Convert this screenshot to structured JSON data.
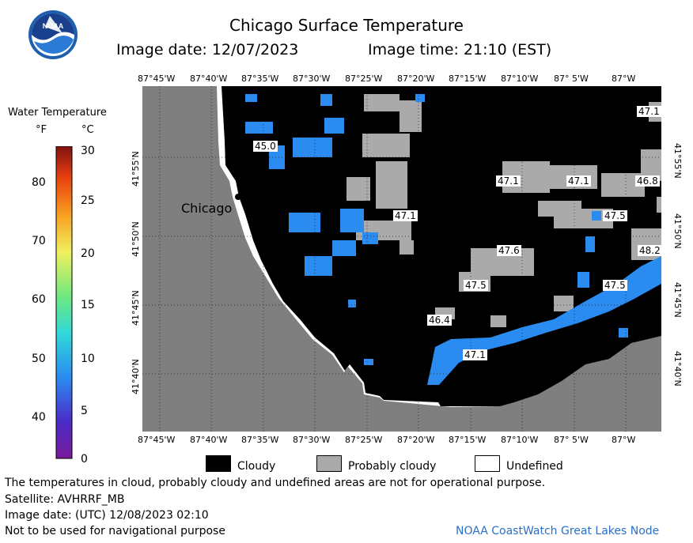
{
  "header": {
    "title": "Chicago Surface Temperature",
    "image_date": "Image date: 12/07/2023",
    "image_time": "Image time: 21:10 (EST)"
  },
  "logo": {
    "text": "NOAA"
  },
  "colorbar": {
    "title": "Water Temperature",
    "unit_f": "°F",
    "unit_c": "°C",
    "f_ticks": [
      "80",
      "70",
      "60",
      "50",
      "40"
    ],
    "c_ticks": [
      "30",
      "25",
      "20",
      "15",
      "10",
      "5",
      "0"
    ]
  },
  "map": {
    "lon_labels": [
      "87°45'W",
      "87°40'W",
      "87°35'W",
      "87°30'W",
      "87°25'W",
      "87°20'W",
      "87°15'W",
      "87°10'W",
      "87° 5'W",
      "87°W"
    ],
    "lat_labels": [
      "41°55'N",
      "41°50'N",
      "41°45'N",
      "41°40'N"
    ],
    "city": "Chicago",
    "temps": [
      "47.1",
      "45.0",
      "47.1",
      "47.1",
      "46.8",
      "47.1",
      "47.5",
      "47.6",
      "48.2",
      "47.5",
      "47.5",
      "46.4",
      "47.1"
    ],
    "colors": {
      "land": "#7f7f7f",
      "cloud": "#000000",
      "probably_cloudy": "#aaaaaa",
      "water": "#2a8cf0",
      "undefined": "#ffffff"
    }
  },
  "legend": {
    "cloudy": "Cloudy",
    "probably_cloudy": "Probably cloudy",
    "undefined": "Undefined"
  },
  "footer": {
    "disclaimer": "The temperatures in cloud, probably cloudy and undefined areas are not for operational purpose.",
    "satellite": "Satellite: AVHRRF_MB",
    "utc_date": "Image date: (UTC) 12/08/2023  02:10",
    "nav_warning": "Not to be used for navigational purpose",
    "credit": "NOAA CoastWatch Great Lakes Node"
  }
}
